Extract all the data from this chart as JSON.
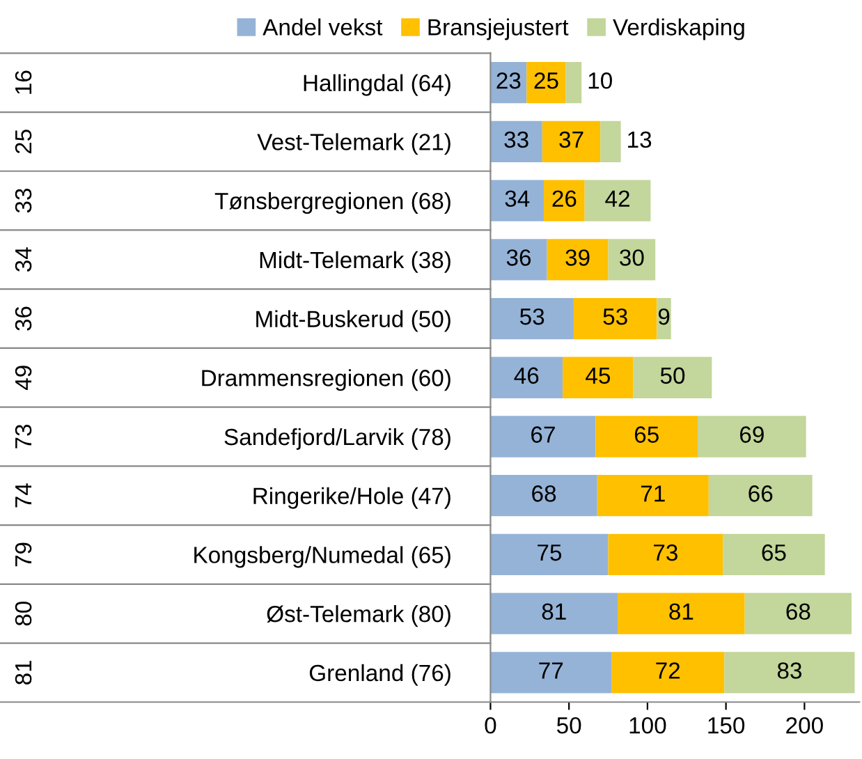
{
  "chart_data": {
    "type": "bar",
    "orientation": "horizontal",
    "stacked": true,
    "data_labels": true,
    "legend": "top",
    "grid": false,
    "categories": [
      "Hallingdal (64)",
      "Vest-Telemark (21)",
      "Tønsbergregionen (68)",
      "Midt-Telemark (38)",
      "Midt-Buskerud (50)",
      "Drammensregionen (60)",
      "Sandefjord/Larvik (78)",
      "Ringerike/Hole (47)",
      "Kongsberg/Numedal (65)",
      "Øst-Telemark (80)",
      "Grenland (76)"
    ],
    "annotations": [
      "16",
      "25",
      "33",
      "34",
      "36",
      "49",
      "73",
      "74",
      "79",
      "80",
      "81"
    ],
    "series": [
      {
        "name": "Andel vekst",
        "color": "#95b3d7",
        "values": [
          23,
          33,
          34,
          36,
          53,
          46,
          67,
          68,
          75,
          81,
          77
        ]
      },
      {
        "name": "Bransjejustert",
        "color": "#ffc000",
        "values": [
          25,
          37,
          26,
          39,
          53,
          45,
          65,
          71,
          73,
          81,
          72
        ]
      },
      {
        "name": "Verdiskaping",
        "color": "#c3d69b",
        "values": [
          10,
          13,
          42,
          30,
          9,
          50,
          69,
          66,
          65,
          68,
          83
        ]
      }
    ],
    "xlim": [
      0,
      235
    ],
    "xticks": [
      0,
      50,
      100,
      150,
      200
    ]
  }
}
